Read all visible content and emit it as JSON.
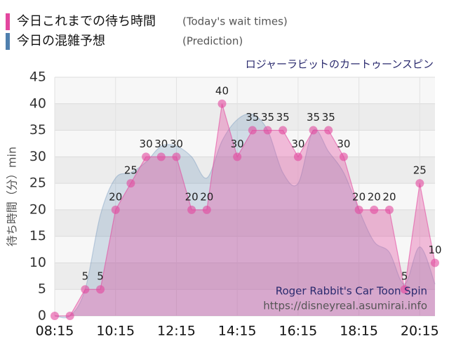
{
  "chart_data": {
    "type": "area",
    "title": "ロジャーラビットのカートゥーンスピン",
    "ylabel": "待ち時間（分）min",
    "watermark": [
      "Roger Rabbit's Car Toon Spin",
      "https://disneyreal.asumirai.info"
    ],
    "x": [
      "08:15",
      "08:45",
      "09:15",
      "09:45",
      "10:15",
      "10:45",
      "11:15",
      "11:45",
      "12:15",
      "12:45",
      "13:15",
      "13:45",
      "14:15",
      "14:45",
      "15:15",
      "15:45",
      "16:15",
      "16:45",
      "17:15",
      "17:45",
      "18:15",
      "18:45",
      "19:15",
      "19:45",
      "20:15",
      "20:45"
    ],
    "series": [
      {
        "name": "今日の混雑予想",
        "name_en": "(Prediction)",
        "color": "#4f7fae",
        "smooth": true,
        "values": [
          0,
          0,
          5,
          19,
          26,
          27,
          29,
          32,
          32,
          30,
          26,
          33,
          37,
          38,
          35,
          27,
          25,
          35,
          31,
          27,
          20,
          14,
          12,
          6,
          13,
          6
        ]
      },
      {
        "name": "今日これまでの待ち時間",
        "name_en": "(Today's wait times)",
        "color": "#e3479f",
        "smooth": false,
        "markers": true,
        "labels": true,
        "values": [
          0,
          0,
          5,
          5,
          20,
          25,
          30,
          30,
          30,
          20,
          20,
          40,
          30,
          35,
          35,
          35,
          30,
          35,
          35,
          30,
          20,
          20,
          20,
          5,
          25,
          10
        ]
      }
    ],
    "xlim": [
      "08:15",
      "20:45"
    ],
    "xticks": [
      "08:15",
      "10:15",
      "12:15",
      "14:15",
      "16:15",
      "18:15",
      "20:15"
    ],
    "ylim": [
      0,
      45
    ],
    "yticks": [
      0,
      5,
      10,
      15,
      20,
      25,
      30,
      35,
      40,
      45
    ],
    "grid": true
  }
}
